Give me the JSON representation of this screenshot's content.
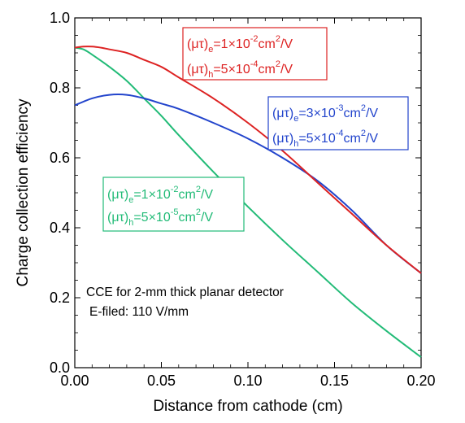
{
  "chart_data": {
    "type": "line",
    "xlabel": "Distance from cathode (cm)",
    "ylabel": "Charge collection efficiency",
    "xlim": [
      0.0,
      0.2
    ],
    "ylim": [
      0.0,
      1.0
    ],
    "xticks": [
      "0.00",
      "0.05",
      "0.10",
      "0.15",
      "0.20"
    ],
    "yticks": [
      "0.0",
      "0.2",
      "0.4",
      "0.6",
      "0.8",
      "1.0"
    ],
    "grid": false,
    "annotation_lines": [
      "CCE for 2-mm thick planar detector",
      "E-filed: 110 V/mm"
    ],
    "series": [
      {
        "color": "#dd2222",
        "legend_e": {
          "label": "(μτ)",
          "sub": "e",
          "mid": "=1×10",
          "exp": "-2",
          "unit": "cm",
          "unit_exp": "2",
          "tail": "/V"
        },
        "legend_h": {
          "label": "(μτ)",
          "sub": "h",
          "mid": "=5×10",
          "exp": "-4",
          "unit": "cm",
          "unit_exp": "2",
          "tail": "/V"
        },
        "x": [
          0.0,
          0.005,
          0.01,
          0.015,
          0.02,
          0.03,
          0.04,
          0.05,
          0.06,
          0.08,
          0.1,
          0.12,
          0.14,
          0.16,
          0.18,
          0.2
        ],
        "y": [
          0.915,
          0.918,
          0.918,
          0.915,
          0.91,
          0.9,
          0.88,
          0.86,
          0.83,
          0.77,
          0.7,
          0.62,
          0.53,
          0.44,
          0.35,
          0.27
        ]
      },
      {
        "color": "#2244cc",
        "legend_e": {
          "label": "(μτ)",
          "sub": "e",
          "mid": "=3×10",
          "exp": "-3",
          "unit": "cm",
          "unit_exp": "2",
          "tail": "/V"
        },
        "legend_h": {
          "label": "(μτ)",
          "sub": "h",
          "mid": "=5×10",
          "exp": "-4",
          "unit": "cm",
          "unit_exp": "2",
          "tail": "/V"
        },
        "x": [
          0.0,
          0.01,
          0.02,
          0.03,
          0.04,
          0.05,
          0.06,
          0.08,
          0.1,
          0.12,
          0.14,
          0.16,
          0.18,
          0.2
        ],
        "y": [
          0.75,
          0.77,
          0.78,
          0.78,
          0.77,
          0.755,
          0.74,
          0.7,
          0.655,
          0.6,
          0.535,
          0.45,
          0.35,
          0.27
        ]
      },
      {
        "color": "#22bb77",
        "legend_e": {
          "label": "(μτ)",
          "sub": "e",
          "mid": "=1×10",
          "exp": "-2",
          "unit": "cm",
          "unit_exp": "2",
          "tail": "/V"
        },
        "legend_h": {
          "label": "(μτ)",
          "sub": "h",
          "mid": "=5×10",
          "exp": "-5",
          "unit": "cm",
          "unit_exp": "2",
          "tail": "/V"
        },
        "x": [
          0.0,
          0.005,
          0.01,
          0.02,
          0.03,
          0.04,
          0.05,
          0.06,
          0.08,
          0.1,
          0.12,
          0.14,
          0.16,
          0.18,
          0.2
        ],
        "y": [
          0.915,
          0.91,
          0.895,
          0.86,
          0.82,
          0.77,
          0.72,
          0.665,
          0.56,
          0.46,
          0.365,
          0.275,
          0.185,
          0.105,
          0.03
        ]
      }
    ]
  }
}
